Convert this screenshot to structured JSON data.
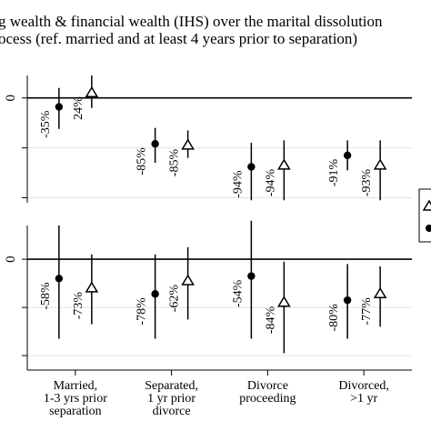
{
  "title_lines": [
    "g wealth & financial wealth (IHS) over the marital dissolution",
    "ocess (ref. married and at least 4 years prior to separation)"
  ],
  "chart_data": {
    "type": "scatter",
    "categories": [
      "Married,\n1-3 yrs prior\nseparation",
      "Separated,\n1 yr prior\ndivorce",
      "Divorce\nproceeding",
      "Divorced,\n>1 yr"
    ],
    "legend_placement": "right",
    "panels": [
      {
        "ytick_label": "0",
        "ylim": [
          -2.1,
          0.45
        ],
        "ytick_values": [
          0,
          -1,
          -2
        ],
        "series": [
          {
            "marker": "circle",
            "points": [
              {
                "category": 0,
                "value": -0.18,
                "ci": [
                  -0.62,
                  0.2
                ],
                "label": "-35%"
              },
              {
                "category": 1,
                "value": -0.92,
                "ci": [
                  -1.3,
                  -0.6
                ],
                "label": "-85%"
              },
              {
                "category": 2,
                "value": -1.38,
                "ci": [
                  -2.05,
                  -0.9
                ],
                "label": "-94%"
              },
              {
                "category": 3,
                "value": -1.15,
                "ci": [
                  -1.45,
                  -0.85
                ],
                "label": "-91%"
              }
            ]
          },
          {
            "marker": "triangle",
            "points": [
              {
                "category": 0,
                "value": 0.1,
                "ci": [
                  -0.2,
                  0.45
                ],
                "label": "24%"
              },
              {
                "category": 1,
                "value": -0.95,
                "ci": [
                  -1.2,
                  -0.65
                ],
                "label": "-85%"
              },
              {
                "category": 2,
                "value": -1.35,
                "ci": [
                  -2.05,
                  -0.85
                ],
                "label": "-94%"
              },
              {
                "category": 3,
                "value": -1.35,
                "ci": [
                  -2.05,
                  -0.85
                ],
                "label": "-93%"
              }
            ]
          }
        ]
      },
      {
        "ytick_label": "0",
        "ylim": [
          -2.3,
          0.7
        ],
        "ytick_values": [
          0,
          -1,
          -2
        ],
        "series": [
          {
            "marker": "circle",
            "points": [
              {
                "category": 0,
                "value": -0.4,
                "ci": [
                  -1.65,
                  0.7
                ],
                "label": "-58%"
              },
              {
                "category": 1,
                "value": -0.72,
                "ci": [
                  -1.65,
                  0.1
                ],
                "label": "-78%"
              },
              {
                "category": 2,
                "value": -0.35,
                "ci": [
                  -1.65,
                  0.8
                ],
                "label": "-54%"
              },
              {
                "category": 3,
                "value": -0.85,
                "ci": [
                  -1.65,
                  -0.1
                ],
                "label": "-80%"
              }
            ]
          },
          {
            "marker": "triangle",
            "points": [
              {
                "category": 0,
                "value": -0.6,
                "ci": [
                  -1.35,
                  0.1
                ],
                "label": "-73%"
              },
              {
                "category": 1,
                "value": -0.45,
                "ci": [
                  -1.25,
                  0.25
                ],
                "label": "-62%"
              },
              {
                "category": 2,
                "value": -0.9,
                "ci": [
                  -1.95,
                  -0.05
                ],
                "label": "-84%"
              },
              {
                "category": 3,
                "value": -0.72,
                "ci": [
                  -1.4,
                  -0.15
                ],
                "label": "-77%"
              }
            ]
          }
        ]
      }
    ]
  }
}
